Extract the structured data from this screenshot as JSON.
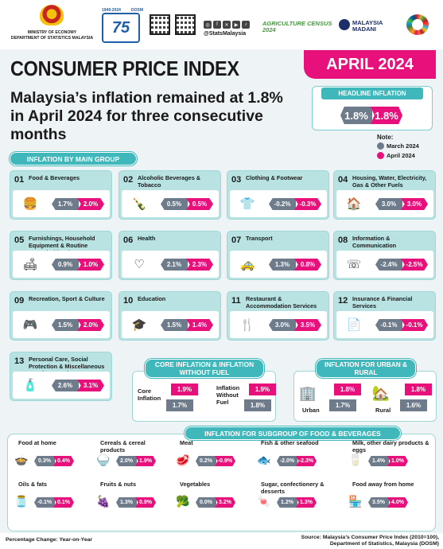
{
  "header": {
    "ministry": "MINISTRY OF ECONOMY",
    "department": "DEPARTMENT OF STATISTICS MALAYSIA",
    "handle": "@StatsMalaysia",
    "agri_census": "AGRICULTURE CENSUS 2024",
    "madani": "MALAYSIA MADANI",
    "anniv_label": "75",
    "anniv_years": "1949-2024",
    "anniv_brand": "DOSM"
  },
  "title": "CONSUMER PRICE INDEX",
  "month": "APRIL 2024",
  "subtitle": "Malaysia’s inflation remained at 1.8% in April 2024 for three consecutive months",
  "headline": {
    "label": "HEADLINE INFLATION",
    "march": "1.8%",
    "april": "1.8%"
  },
  "note": {
    "title": "Note:",
    "march": "March 2024",
    "april": "April 2024"
  },
  "colors": {
    "march": "#6e7b8b",
    "april": "#e8117b",
    "accent": "#3fb7bb"
  },
  "main_group": {
    "label": "INFLATION BY MAIN GROUP",
    "items": [
      {
        "num": "01",
        "name": "Food & Beverages",
        "march": "1.7%",
        "april": "2.0%",
        "icon": "food-icon",
        "glyph": "🍔"
      },
      {
        "num": "02",
        "name": "Alcoholic Beverages & Tobacco",
        "march": "0.5%",
        "april": "0.5%",
        "icon": "bottle-icon",
        "glyph": "🍾"
      },
      {
        "num": "03",
        "name": "Clothing & Footwear",
        "march": "-0.2%",
        "april": "-0.3%",
        "icon": "clothing-icon",
        "glyph": "👕"
      },
      {
        "num": "04",
        "name": "Housing, Water, Electricity, Gas & Other Fuels",
        "march": "3.0%",
        "april": "3.0%",
        "icon": "house-icon",
        "glyph": "🏠"
      },
      {
        "num": "05",
        "name": "Furnishings, Household Equipment & Routine Household Maintenance",
        "march": "0.9%",
        "april": "1.0%",
        "icon": "furniture-icon",
        "glyph": "🛋"
      },
      {
        "num": "06",
        "name": "Health",
        "march": "2.1%",
        "april": "2.3%",
        "icon": "heart-icon",
        "glyph": "♡"
      },
      {
        "num": "07",
        "name": "Transport",
        "march": "1.3%",
        "april": "0.8%",
        "icon": "car-icon",
        "glyph": "🚕"
      },
      {
        "num": "08",
        "name": "Information & Communication",
        "march": "-2.4%",
        "april": "-2.5%",
        "icon": "phone-icon",
        "glyph": "☏"
      },
      {
        "num": "09",
        "name": "Recreation, Sport & Culture",
        "march": "1.5%",
        "april": "2.0%",
        "icon": "recreation-icon",
        "glyph": "🎮"
      },
      {
        "num": "10",
        "name": "Education",
        "march": "1.5%",
        "april": "1.4%",
        "icon": "education-icon",
        "glyph": "🎓"
      },
      {
        "num": "11",
        "name": "Restaurant & Accommodation Services",
        "march": "3.0%",
        "april": "3.5%",
        "icon": "restaurant-icon",
        "glyph": "🍴"
      },
      {
        "num": "12",
        "name": "Insurance & Financial Services",
        "march": "-0.1%",
        "april": "-0.1%",
        "icon": "insurance-icon",
        "glyph": "📄"
      },
      {
        "num": "13",
        "name": "Personal Care, Social Protection & Miscellaneous Goods & Services",
        "march": "2.6%",
        "april": "3.1%",
        "icon": "personal-care-icon",
        "glyph": "🧴"
      }
    ]
  },
  "core": {
    "title": "CORE INFLATION & INFLATION WITHOUT FUEL",
    "core_label": "Core Inflation",
    "core_march": "1.7%",
    "core_april": "1.9%",
    "nofuel_label": "Inflation Without Fuel",
    "nofuel_march": "1.8%",
    "nofuel_april": "1.9%"
  },
  "urban_rural": {
    "title": "INFLATION FOR URBAN & RURAL",
    "urban_label": "Urban",
    "urban_march": "1.7%",
    "urban_april": "1.8%",
    "rural_label": "Rural",
    "rural_march": "1.6%",
    "rural_april": "1.8%"
  },
  "food": {
    "title": "INFLATION FOR SUBGROUP OF FOOD & BEVERAGES",
    "items": [
      {
        "name": "Food at home",
        "march": "0.3%",
        "april": "0.4%",
        "icon": "food-at-home-icon",
        "glyph": "🍲"
      },
      {
        "name": "Cereals & cereal products",
        "march": "2.0%",
        "april": "1.9%",
        "icon": "cereal-icon",
        "glyph": "🍚"
      },
      {
        "name": "Meat",
        "march": "0.2%",
        "april": "-0.9%",
        "icon": "meat-icon",
        "glyph": "🥩"
      },
      {
        "name": "Fish & other seafood",
        "march": "-2.0%",
        "april": "-2.3%",
        "icon": "fish-icon",
        "glyph": "🐟"
      },
      {
        "name": "Milk, other dairy products & eggs",
        "march": "1.4%",
        "april": "1.0%",
        "icon": "milk-icon",
        "glyph": "🥛"
      },
      {
        "name": "Oils & fats",
        "march": "-0.1%",
        "april": "0.1%",
        "icon": "oil-icon",
        "glyph": "🫙"
      },
      {
        "name": "Fruits & nuts",
        "march": "1.3%",
        "april": "0.9%",
        "icon": "fruit-icon",
        "glyph": "🍇"
      },
      {
        "name": "Vegetables",
        "march": "0.0%",
        "april": "3.2%",
        "icon": "vegetable-icon",
        "glyph": "🥦"
      },
      {
        "name": "Sugar, confectionery & desserts",
        "march": "1.2%",
        "april": "1.3%",
        "icon": "sugar-icon",
        "glyph": "🍬"
      },
      {
        "name": "Food away from home",
        "march": "3.5%",
        "april": "4.0%",
        "icon": "food-away-icon",
        "glyph": "🏪"
      }
    ]
  },
  "footer": {
    "left": "Percentage Change: Year-on-Year",
    "right1": "Source: Malaysia’s Consumer Price Index (2010=100),",
    "right2": "Department of Statistics, Malaysia (DOSM)"
  }
}
